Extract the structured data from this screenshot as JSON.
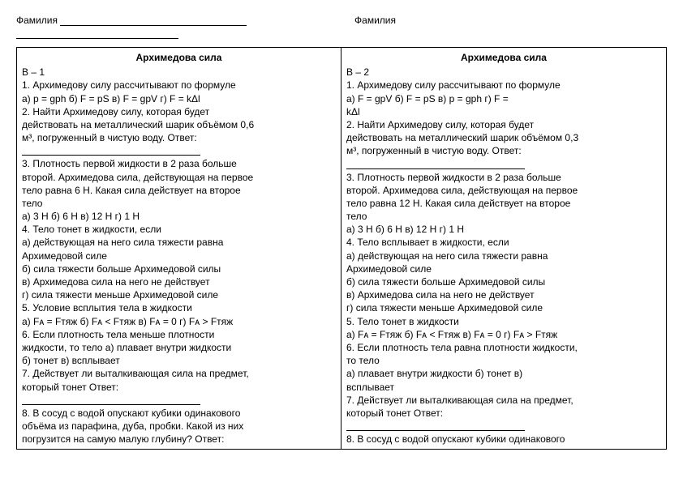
{
  "header": {
    "surname_label": "Фамилия"
  },
  "col1": {
    "title": "Архимедова сила",
    "variant": "В – 1",
    "q1": "1. Архимедову силу рассчитывают по формуле",
    "q1opts": "а) p = gph      б) F = pS         в) F =  gpV   г) F = kΔl",
    "q2a": "2. Найти Архимедову силу, которая будет",
    "q2b": "действовать на металлический шарик объёмом 0,6",
    "q2c": "м³, погруженный в чистую воду.     Ответ:",
    "q3a": "3. Плотность первой жидкости в 2 раза больше",
    "q3b": "второй. Архимедова сила, действующая на первое",
    "q3c": "тело равна 6 Н. Какая сила действует на второе",
    "q3d": "тело",
    "q3opts": "а) 3 Н      б) 6 Н        в) 12 Н    г) 1 Н",
    "q4": "4. Тело тонет в жидкости, если",
    "q4a": "а) действующая на него сила тяжести равна",
    "q4a2": "Архимедовой силе",
    "q4b": "б) сила тяжести больше Архимедовой силы",
    "q4c": "в) Архимедова сила на него не действует",
    "q4d": "г) сила тяжести меньше Архимедовой силе",
    "q5": "5. Условие всплытия тела в жидкости",
    "q5opts": "а) Fᴀ = Fтяж       б) Fᴀ < Fтяж        в) Fᴀ = 0    г) Fᴀ > Fтяж",
    "q6a": "6. Если плотность тела меньше плотности",
    "q6b": "жидкости, то тело        а) плавает внутри жидкости",
    "q6c": "б) тонет     в) всплывает",
    "q7a": "7. Действует ли выталкивающая сила на предмет,",
    "q7b": "который тонет        Ответ:",
    "q8a": "8. В сосуд с водой опускают кубики одинакового",
    "q8b": "объёма из парафина, дуба, пробки. Какой из них",
    "q8c": "погрузится на самую малую глубину?  Ответ:"
  },
  "col2": {
    "title": "Архимедова сила",
    "variant": "В – 2",
    "q1": "1. Архимедову силу рассчитывают по формуле",
    "q1opts": "а) F =  gpV    б) F = pS         в) p = gph         г) F =",
    "q1opts2": "kΔl",
    "q2a": "2. Найти Архимедову силу, которая будет",
    "q2b": "действовать на металлический шарик объёмом 0,3",
    "q2c": "м³, погруженный в чистую воду.     Ответ:",
    "q3a": "3. Плотность первой жидкости в 2 раза больше",
    "q3b": "второй. Архимедова сила, действующая на первое",
    "q3c": "тело равна 12 Н. Какая сила действует на второе",
    "q3d": "тело",
    "q3opts": "а) 3 Н      б) 6 Н        в) 12 Н    г) 1 Н",
    "q4": "4. Тело всплывает  в жидкости, если",
    "q4a": "а) действующая на него сила тяжести равна",
    "q4a2": "Архимедовой силе",
    "q4b": "б) сила тяжести больше Архимедовой силы",
    "q4c": "в) Архимедова сила на него не действует",
    "q4d": "г) сила тяжести меньше Архимедовой силе",
    "q5": "5. Тело тонет  в жидкости",
    "q5opts": "а) Fᴀ = Fтяж       б) Fᴀ < Fтяж        в) Fᴀ = 0    г) Fᴀ > Fтяж",
    "q6a": "6. Если плотность тела равна плотности жидкости,",
    "q6b": "то тело",
    "q6c": "а) плавает внутри жидкости      б) тонет     в)",
    "q6d": "всплывает",
    "q7a": "7. Действует ли выталкивающая сила на предмет,",
    "q7b": "который тонет        Ответ:",
    "q8a": "8. В сосуд с водой опускают кубики одинакового"
  }
}
